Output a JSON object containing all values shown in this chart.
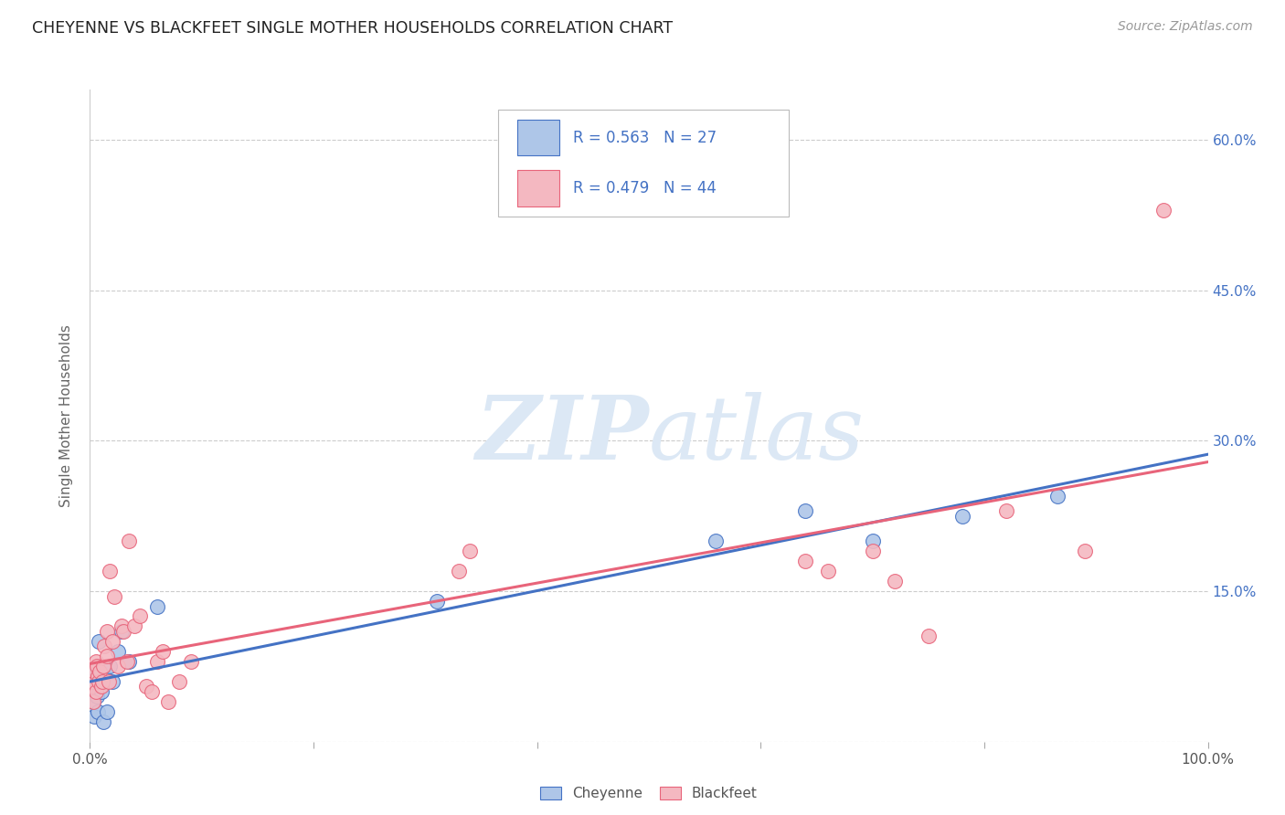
{
  "title": "CHEYENNE VS BLACKFEET SINGLE MOTHER HOUSEHOLDS CORRELATION CHART",
  "source": "Source: ZipAtlas.com",
  "ylabel": "Single Mother Households",
  "xlim": [
    0,
    1.0
  ],
  "ylim": [
    0,
    0.65
  ],
  "xticks": [
    0.0,
    0.2,
    0.4,
    0.6,
    0.8,
    1.0
  ],
  "xticklabels": [
    "0.0%",
    "",
    "",
    "",
    "",
    "100.0%"
  ],
  "yticks": [
    0.0,
    0.15,
    0.3,
    0.45,
    0.6
  ],
  "yticklabels": [
    "",
    "15.0%",
    "30.0%",
    "45.0%",
    "60.0%"
  ],
  "grid_color": "#cccccc",
  "background_color": "#ffffff",
  "cheyenne_color": "#aec6e8",
  "blackfeet_color": "#f4b8c1",
  "cheyenne_line_color": "#4472c4",
  "blackfeet_line_color": "#e8647a",
  "legend_color": "#4472c4",
  "watermark_color": "#dce8f5",
  "cheyenne_x": [
    0.001,
    0.002,
    0.003,
    0.003,
    0.004,
    0.005,
    0.005,
    0.006,
    0.007,
    0.008,
    0.009,
    0.01,
    0.012,
    0.013,
    0.015,
    0.018,
    0.02,
    0.025,
    0.028,
    0.035,
    0.06,
    0.31,
    0.56,
    0.64,
    0.7,
    0.78,
    0.865
  ],
  "cheyenne_y": [
    0.055,
    0.05,
    0.04,
    0.06,
    0.025,
    0.055,
    0.07,
    0.045,
    0.03,
    0.1,
    0.07,
    0.05,
    0.02,
    0.065,
    0.03,
    0.075,
    0.06,
    0.09,
    0.11,
    0.08,
    0.135,
    0.14,
    0.2,
    0.23,
    0.2,
    0.225,
    0.245
  ],
  "blackfeet_x": [
    0.001,
    0.002,
    0.003,
    0.004,
    0.005,
    0.005,
    0.006,
    0.007,
    0.008,
    0.009,
    0.01,
    0.011,
    0.012,
    0.013,
    0.015,
    0.015,
    0.017,
    0.018,
    0.02,
    0.022,
    0.025,
    0.028,
    0.03,
    0.033,
    0.035,
    0.04,
    0.045,
    0.05,
    0.055,
    0.06,
    0.065,
    0.07,
    0.08,
    0.09,
    0.33,
    0.34,
    0.64,
    0.66,
    0.7,
    0.72,
    0.75,
    0.82,
    0.89,
    0.96
  ],
  "blackfeet_y": [
    0.055,
    0.06,
    0.04,
    0.07,
    0.08,
    0.05,
    0.075,
    0.065,
    0.06,
    0.07,
    0.055,
    0.06,
    0.075,
    0.095,
    0.085,
    0.11,
    0.06,
    0.17,
    0.1,
    0.145,
    0.075,
    0.115,
    0.11,
    0.08,
    0.2,
    0.115,
    0.125,
    0.055,
    0.05,
    0.08,
    0.09,
    0.04,
    0.06,
    0.08,
    0.17,
    0.19,
    0.18,
    0.17,
    0.19,
    0.16,
    0.105,
    0.23,
    0.19,
    0.53
  ]
}
